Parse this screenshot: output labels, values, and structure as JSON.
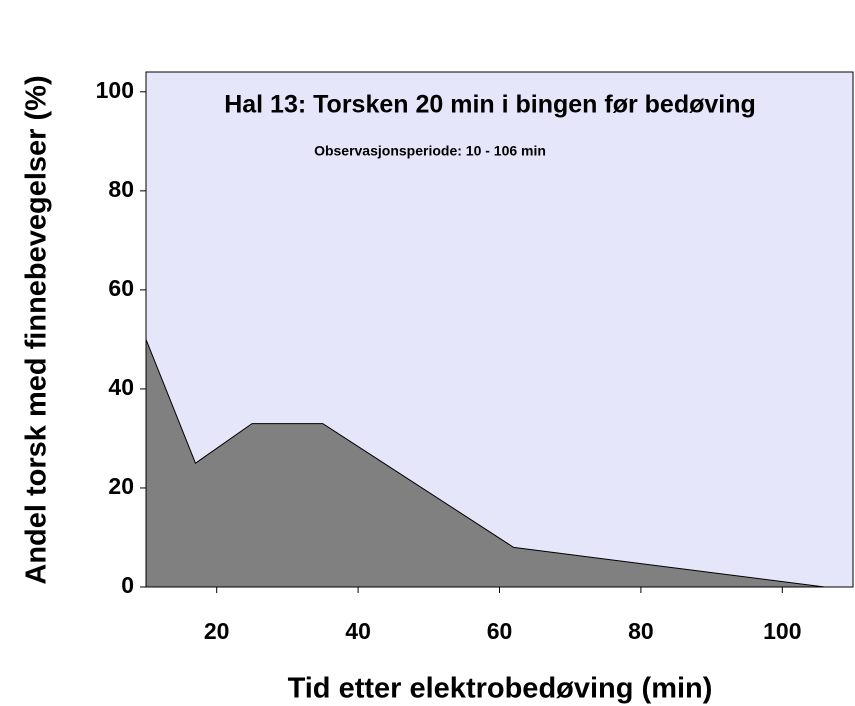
{
  "chart_data": {
    "type": "area",
    "title": "Hal 13: Torsken 20 min i bingen før bedøving",
    "subtitle": "Observasjonsperiode: 10 - 106 min",
    "x_label": "Tid etter elektrobedøving (min)",
    "y_label": "Andel torsk med finnebevegelser (%)",
    "x": [
      10,
      17,
      25,
      35,
      62,
      106
    ],
    "values": [
      50,
      25,
      33,
      33,
      8,
      0
    ],
    "color": "#808080",
    "background": "#e6e6fa",
    "xlim": [
      10,
      110
    ],
    "xticks": [
      20,
      40,
      60,
      80,
      100
    ],
    "ylim": [
      0,
      104
    ],
    "yticks": [
      0,
      20,
      40,
      60,
      80,
      100
    ]
  }
}
